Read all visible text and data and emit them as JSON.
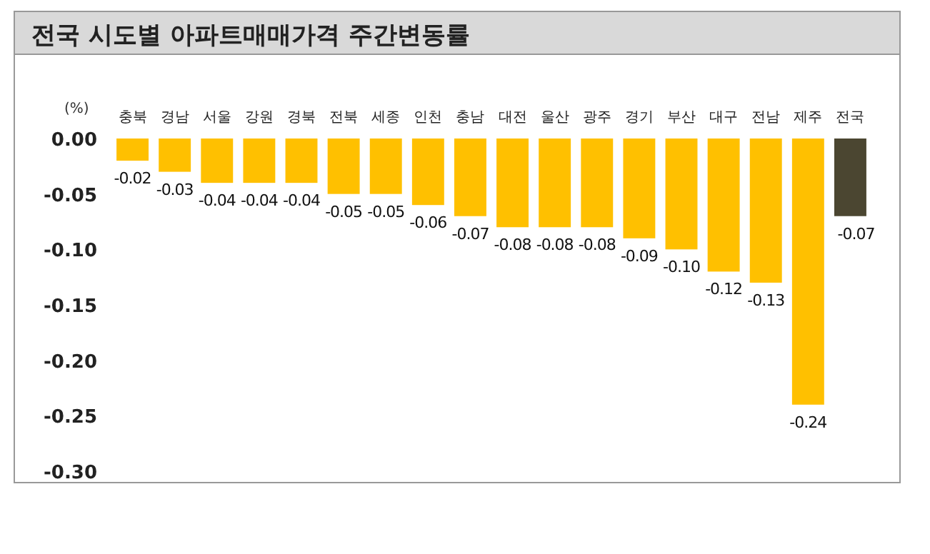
{
  "chart_data": {
    "type": "bar",
    "title": "전국 시도별 아파트매매가격 주간변동률",
    "ylabel": "(%)",
    "categories": [
      "충북",
      "경남",
      "서울",
      "강원",
      "경북",
      "전북",
      "세종",
      "인천",
      "충남",
      "대전",
      "울산",
      "광주",
      "경기",
      "부산",
      "대구",
      "전남",
      "제주",
      "전국"
    ],
    "values": [
      -0.02,
      -0.03,
      -0.04,
      -0.04,
      -0.04,
      -0.05,
      -0.05,
      -0.06,
      -0.07,
      -0.08,
      -0.08,
      -0.08,
      -0.09,
      -0.1,
      -0.12,
      -0.13,
      -0.24,
      -0.07
    ],
    "colors": [
      "#ffc000",
      "#ffc000",
      "#ffc000",
      "#ffc000",
      "#ffc000",
      "#ffc000",
      "#ffc000",
      "#ffc000",
      "#ffc000",
      "#ffc000",
      "#ffc000",
      "#ffc000",
      "#ffc000",
      "#ffc000",
      "#ffc000",
      "#ffc000",
      "#ffc000",
      "#4b4631"
    ],
    "ylim": [
      -0.3,
      0
    ],
    "yticks": [
      {
        "value": 0,
        "label": "0.00"
      },
      {
        "value": -0.05,
        "label": "-0.05"
      },
      {
        "value": -0.1,
        "label": "-0.10"
      },
      {
        "value": -0.15,
        "label": "-0.15"
      },
      {
        "value": -0.2,
        "label": "-0.20"
      },
      {
        "value": -0.25,
        "label": "-0.25"
      },
      {
        "value": -0.3,
        "label": "-0.30"
      }
    ],
    "value_labels": [
      "-0.02",
      "-0.03",
      "-0.04",
      "-0.04",
      "-0.04",
      "-0.05",
      "-0.05",
      "-0.06",
      "-0.07",
      "-0.08",
      "-0.08",
      "-0.08",
      "-0.09",
      "-0.10",
      "-0.12",
      "-0.13",
      "-0.24",
      "-0.07"
    ]
  }
}
